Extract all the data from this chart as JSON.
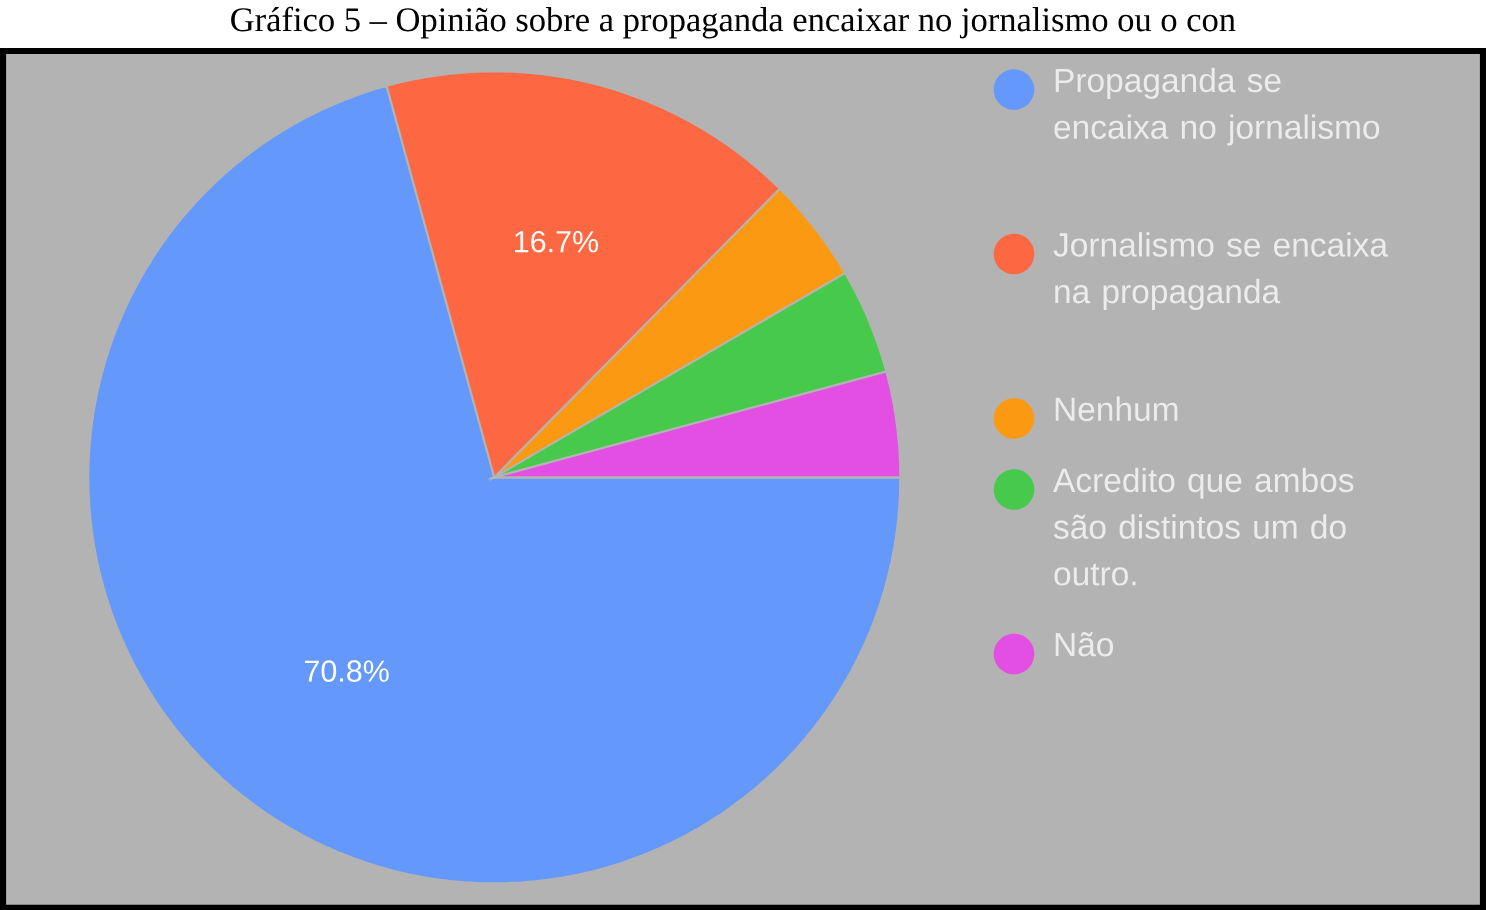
{
  "chart_data": {
    "type": "pie",
    "title": "Gráfico 5 – Opinião sobre a propaganda encaixar no jornalismo ou o con",
    "categories": [
      "Propaganda se encaixa no jornalismo",
      "Jornalismo se encaixa na propaganda",
      "Nenhum",
      "Acredito que ambos são distintos um do outro.",
      "Não"
    ],
    "values": [
      70.8,
      16.7,
      4.2,
      4.2,
      4.2
    ],
    "colors": [
      "#6499fb",
      "#fd6842",
      "#fb9a12",
      "#47c94c",
      "#e24fe2"
    ],
    "value_labels": [
      "70.8%",
      "16.7%",
      null,
      null,
      null
    ],
    "legend": "right"
  }
}
